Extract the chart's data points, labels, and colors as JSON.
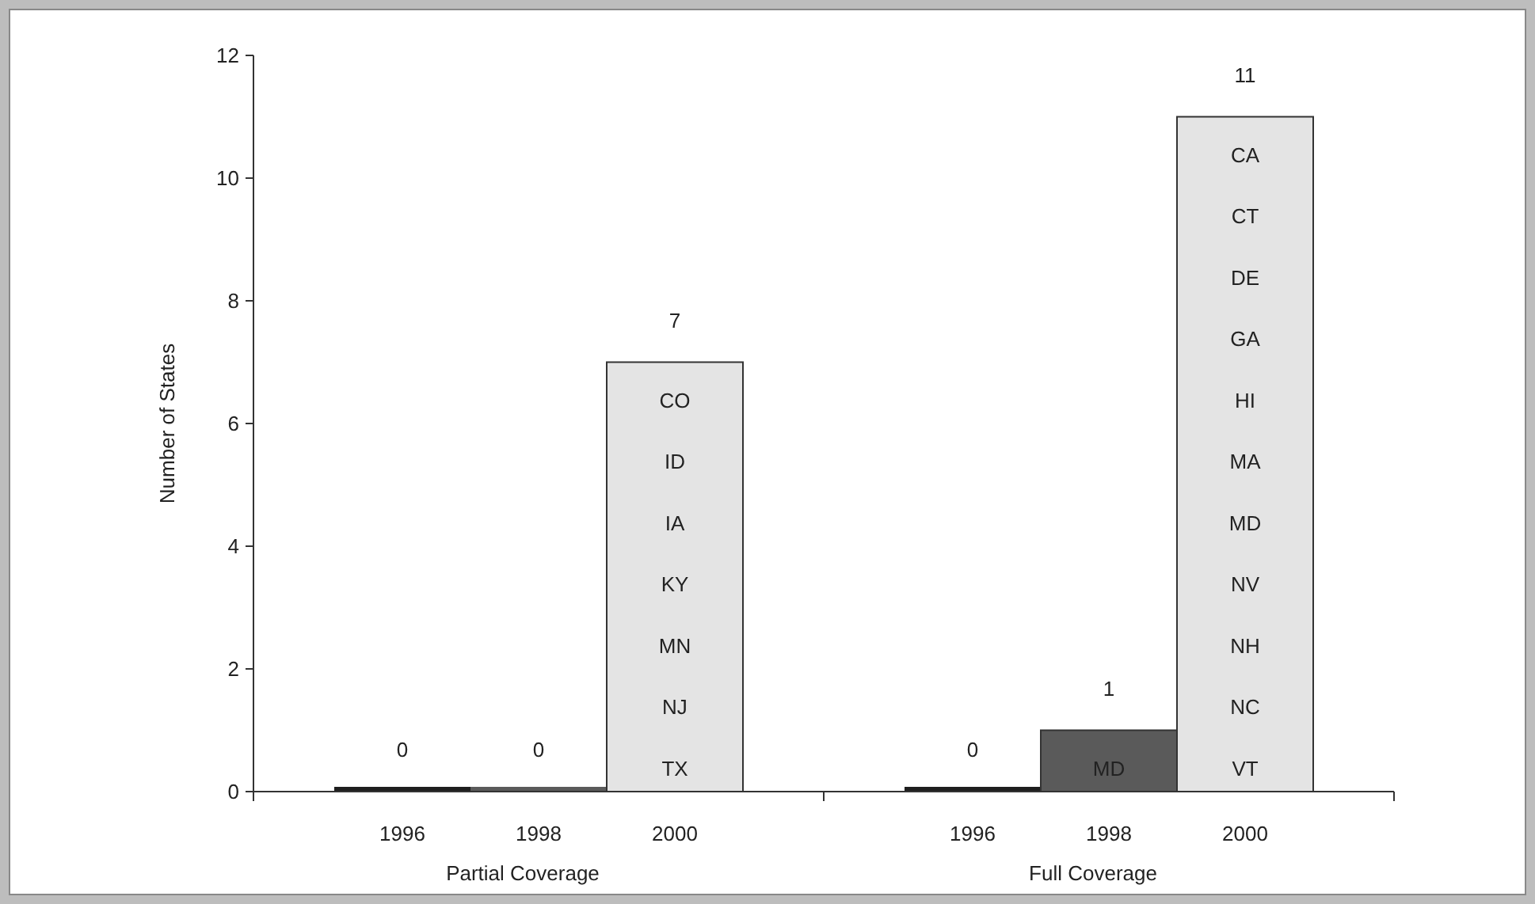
{
  "chart_data": {
    "type": "bar",
    "ylabel": "Number of States",
    "categories": [
      "Partial Coverage",
      "Full Coverage"
    ],
    "series": [
      {
        "name": "1996",
        "color": "#1e1e1e",
        "values": [
          0,
          0
        ]
      },
      {
        "name": "1998",
        "color": "#5a5a5a",
        "values": [
          0,
          1
        ]
      },
      {
        "name": "2000",
        "color": "#e4e4e4",
        "values": [
          7,
          11
        ]
      }
    ],
    "ylim": [
      0,
      12
    ],
    "yticks": [
      0,
      2,
      4,
      6,
      8,
      10,
      12
    ],
    "grid": false,
    "legend": false,
    "data_labels": true,
    "annotations": [
      "CO",
      "ID",
      "IA",
      "KY",
      "MN",
      "NJ",
      "TX",
      "CA",
      "CT",
      "DE",
      "GA",
      "HI",
      "MA",
      "MD",
      "NV",
      "NH",
      "NC",
      "VT",
      "MD"
    ]
  }
}
